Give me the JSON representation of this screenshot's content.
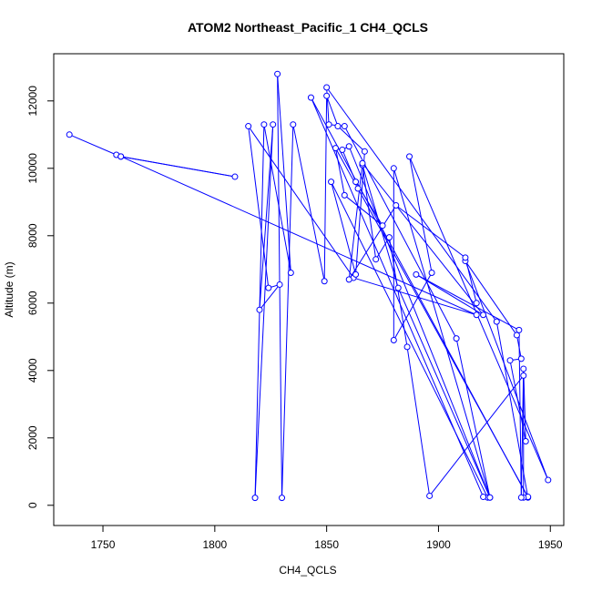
{
  "chart_data": {
    "type": "line",
    "title": "ATOM2 Northeast_Pacific_1 CH4_QCLS",
    "xlabel": "CH4_QCLS",
    "ylabel": "Altitude (m)",
    "xlim": [
      1728,
      1956
    ],
    "ylim": [
      -600,
      13400
    ],
    "xticks": [
      1750,
      1800,
      1850,
      1900,
      1950
    ],
    "yticks": [
      0,
      2000,
      4000,
      6000,
      8000,
      10000,
      12000
    ],
    "grid": false,
    "color": "#0000ff",
    "series": [
      {
        "x": [
          1735,
          1756,
          1758,
          1809,
          1758,
          1917,
          1862,
          1815,
          1824,
          1829,
          1820,
          1826,
          1818,
          1822,
          1834,
          1828,
          1830,
          1835,
          1849,
          1850,
          1855,
          1867,
          1863,
          1852,
          1922,
          1920,
          1843,
          1940,
          1926,
          1850,
          1851,
          1858,
          1908,
          1923,
          1860,
          1857,
          1863,
          1875,
          1858,
          1854,
          1864,
          1940,
          1938,
          1938,
          1896,
          1886,
          1878,
          1872,
          1866,
          1882,
          1923,
          1880,
          1880,
          1897,
          1887,
          1949,
          1912,
          1935,
          1937,
          1932,
          1939,
          1938,
          1937,
          1936,
          1890,
          1920,
          1866,
          1860,
          1881,
          1912,
          1917
        ],
        "y": [
          11000,
          10400,
          10350,
          9750,
          10350,
          5650,
          6750,
          11250,
          6450,
          6550,
          5800,
          11300,
          220,
          11300,
          6900,
          12800,
          220,
          11300,
          6650,
          12150,
          11250,
          10500,
          6850,
          9600,
          230,
          250,
          12100,
          230,
          5450,
          12400,
          11300,
          11250,
          4950,
          230,
          10650,
          10550,
          9600,
          8300,
          9200,
          10600,
          9400,
          250,
          230,
          3850,
          280,
          4700,
          7950,
          7300,
          10100,
          6450,
          230,
          10000,
          4900,
          6900,
          10350,
          750,
          7250,
          5050,
          4350,
          4300,
          1900,
          4050,
          230,
          5200,
          6850,
          5650,
          10150,
          6700,
          8900,
          7350,
          6000
        ]
      }
    ]
  }
}
